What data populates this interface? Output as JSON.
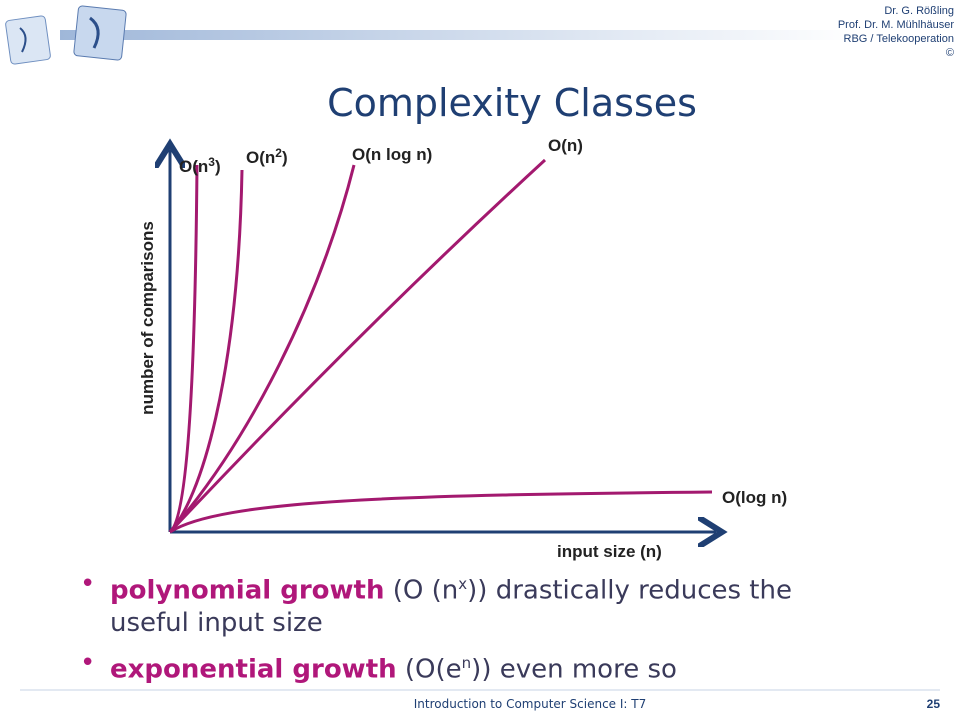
{
  "header": {
    "authors": [
      "Dr. G. Rößling",
      "Prof. Dr. M. Mühlhäuser",
      "RBG / Telekooperation",
      "©"
    ]
  },
  "title": "Complexity Classes",
  "diagram": {
    "y_axis_label": "number of comparisons",
    "x_axis_label": "input size (n)",
    "curves": [
      {
        "text": "O(n",
        "sup": "3",
        "tail": ")"
      },
      {
        "text": "O(n",
        "sup": "2",
        "tail": ")"
      },
      {
        "text": "O(n log n)"
      },
      {
        "text": "O(n)"
      },
      {
        "text": "O(log n)"
      }
    ]
  },
  "bullets": [
    {
      "emphasis": "polynomial growth",
      "text": " (O (n",
      "sup": "x",
      "tail": ")) drastically reduces the useful input size"
    },
    {
      "emphasis": "exponential growth",
      "text": " (O(e",
      "sup": "n",
      "tail": ")) even more so"
    }
  ],
  "footer": {
    "course": "Introduction to Computer Science I: T7",
    "page": "25"
  }
}
